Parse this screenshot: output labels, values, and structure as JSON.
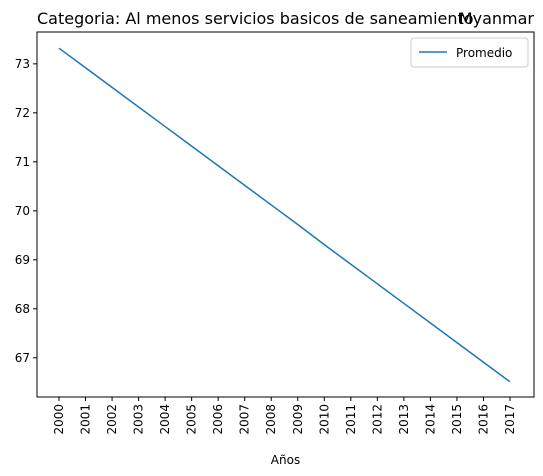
{
  "chart_data": {
    "type": "line",
    "title_left": "Categoria: Al menos servicios basicos de saneamiento",
    "title_right": "Myanmar",
    "xlabel": "Años",
    "ylabel": "",
    "x": [
      "2000",
      "2001",
      "2002",
      "2003",
      "2004",
      "2005",
      "2006",
      "2007",
      "2008",
      "2009",
      "2010",
      "2011",
      "2012",
      "2013",
      "2014",
      "2015",
      "2016",
      "2017"
    ],
    "ylim": [
      66.2,
      73.65
    ],
    "yticks": [
      67,
      68,
      69,
      70,
      71,
      72,
      73
    ],
    "series": [
      {
        "name": "Promedio",
        "color": "#1f77b4",
        "values": [
          73.32,
          72.92,
          72.52,
          72.12,
          71.72,
          71.32,
          70.92,
          70.52,
          70.12,
          69.72,
          69.31,
          68.91,
          68.51,
          68.11,
          67.71,
          67.31,
          66.91,
          66.51
        ]
      }
    ],
    "legend": "top-right",
    "grid": false
  }
}
